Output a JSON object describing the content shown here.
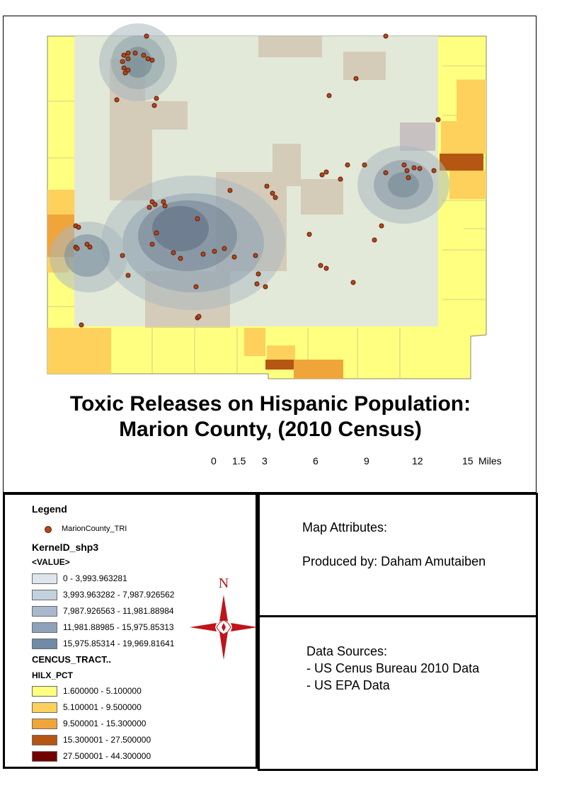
{
  "map": {
    "title_line1": "Toxic Releases on Hispanic Population:",
    "title_line2": "Marion County, (2010 Census)"
  },
  "scale": {
    "labels": [
      "0",
      "1.5",
      "3",
      "6",
      "9",
      "12",
      "15"
    ],
    "unit": "Miles"
  },
  "legend": {
    "title": "Legend",
    "point_layer": "MarionCounty_TRI",
    "kernel_layer": "KernelD_shp3",
    "kernel_field": "<VALUE>",
    "kernel_classes": [
      {
        "label": "0 - 3,993.963281",
        "color": "#dde6ec"
      },
      {
        "label": "3,993.963282 - 7,987.926562",
        "color": "#c3d0dd"
      },
      {
        "label": "7,987.926563 - 11,981.88984",
        "color": "#a9b8cc"
      },
      {
        "label": "11,981.88985 - 15,975.85313",
        "color": "#8fa2bb"
      },
      {
        "label": "15,975.85314 - 19,969.81641",
        "color": "#708aa7"
      }
    ],
    "tract_layer": "CENCUS_TRACT..",
    "tract_field": "HILX_PCT",
    "tract_classes": [
      {
        "label": "1.600000 - 5.100000",
        "color": "#ffff80"
      },
      {
        "label": "5.100001 - 9.500000",
        "color": "#fdd15c"
      },
      {
        "label": "9.500001 - 15.300000",
        "color": "#f0a53a"
      },
      {
        "label": "15.300001 - 27.500000",
        "color": "#b45712"
      },
      {
        "label": "27.500001 - 44.300000",
        "color": "#730000"
      }
    ]
  },
  "attributes": {
    "heading": "Map Attributes:",
    "produced_by": "Produced by: Daham Amutaiben"
  },
  "sources": {
    "heading": "Data Sources:",
    "items": [
      "- US Cenus Bureau 2010 Data",
      "- US EPA Data"
    ]
  },
  "north_arrow": {
    "letter": "N"
  }
}
